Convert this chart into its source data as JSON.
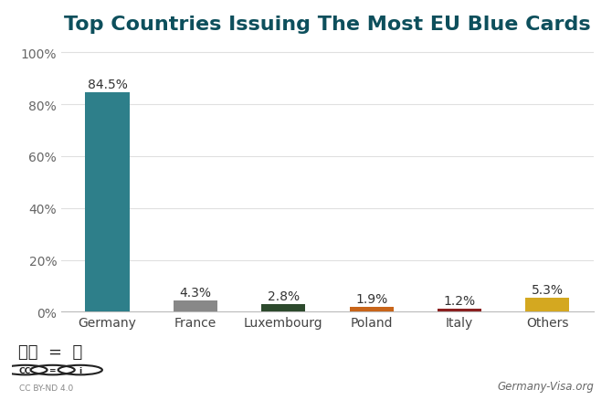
{
  "title": "Top Countries Issuing The Most EU Blue Cards",
  "categories": [
    "Germany",
    "France",
    "Luxembourg",
    "Poland",
    "Italy",
    "Others"
  ],
  "values": [
    84.5,
    4.3,
    2.8,
    1.9,
    1.2,
    5.3
  ],
  "labels": [
    "84.5%",
    "4.3%",
    "2.8%",
    "1.9%",
    "1.2%",
    "5.3%"
  ],
  "bar_colors": [
    "#2e7f8a",
    "#888888",
    "#2d4a2d",
    "#c8651a",
    "#8b2020",
    "#d4a820"
  ],
  "background_color": "#ffffff",
  "title_color": "#0d4f5c",
  "title_fontsize": 16,
  "label_fontsize": 10,
  "tick_fontsize": 10,
  "ytick_values": [
    0,
    20,
    40,
    60,
    80,
    100
  ],
  "ylabel_ticks": [
    "0%",
    "20%",
    "40%",
    "60%",
    "80%",
    "100%"
  ],
  "ylim": [
    0,
    102
  ],
  "watermark": "Germany-Visa.org",
  "copyright_text": "CC BY-ND 4.0"
}
